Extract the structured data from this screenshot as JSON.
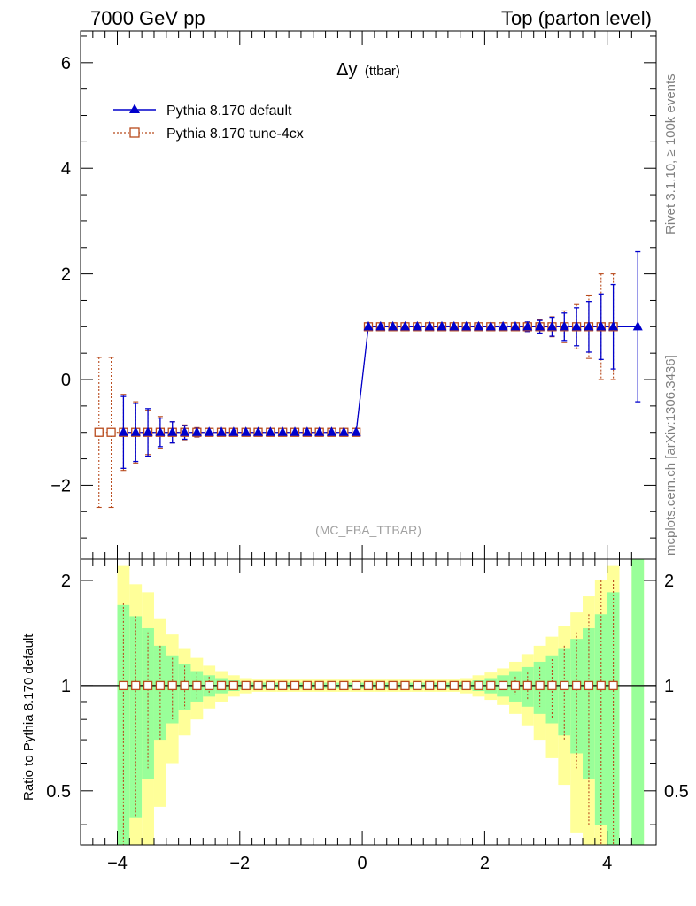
{
  "header": {
    "left": "7000 GeV pp",
    "right": "Top (parton level)"
  },
  "side_labels": {
    "rivet": "Rivet 3.1.10, ≥ 100k events",
    "mcplots": "mcplots.cern.ch [arXiv:1306.3436]"
  },
  "chart_data": [
    {
      "panel": "main",
      "type": "line",
      "title": "Δy (ttbar)",
      "title_main": "Δy",
      "title_sub": "(ttbar)",
      "watermark": "(MC_FBA_TTBAR)",
      "xlabel": "",
      "ylabel": "",
      "xlim": [
        -4.6,
        4.8
      ],
      "ylim": [
        -3.4,
        6.6
      ],
      "y_ticks": [
        -2,
        0,
        2,
        4,
        6
      ],
      "y_tick_labels": [
        "−2",
        "0",
        "2",
        "4",
        "6"
      ],
      "legend_position": "top-left",
      "series": [
        {
          "name": "Pythia 8.170 default",
          "color": "#0000cc",
          "marker": "triangle",
          "x": [
            -3.9,
            -3.7,
            -3.5,
            -3.3,
            -3.1,
            -2.9,
            -2.7,
            -2.5,
            -2.3,
            -2.1,
            -1.9,
            -1.7,
            -1.5,
            -1.3,
            -1.1,
            -0.9,
            -0.7,
            -0.5,
            -0.3,
            -0.1,
            0.1,
            0.3,
            0.5,
            0.7,
            0.9,
            1.1,
            1.3,
            1.5,
            1.7,
            1.9,
            2.1,
            2.3,
            2.5,
            2.7,
            2.9,
            3.1,
            3.3,
            3.5,
            3.7,
            3.9,
            4.1,
            4.5
          ],
          "y": [
            -1,
            -1,
            -1,
            -1,
            -1,
            -1,
            -1,
            -1,
            -1,
            -1,
            -1,
            -1,
            -1,
            -1,
            -1,
            -1,
            -1,
            -1,
            -1,
            -1,
            1,
            1,
            1,
            1,
            1,
            1,
            1,
            1,
            1,
            1,
            1,
            1,
            1,
            1,
            1,
            1,
            1,
            1,
            1,
            1,
            1,
            1
          ],
          "err": [
            0.68,
            0.55,
            0.45,
            0.27,
            0.2,
            0.13,
            0.08,
            0.05,
            0.04,
            0.03,
            0.02,
            0.02,
            0.02,
            0.02,
            0.02,
            0.02,
            0.02,
            0.02,
            0.02,
            0.02,
            0.02,
            0.02,
            0.02,
            0.02,
            0.02,
            0.02,
            0.02,
            0.02,
            0.02,
            0.03,
            0.03,
            0.04,
            0.06,
            0.09,
            0.12,
            0.18,
            0.26,
            0.36,
            0.48,
            0.62,
            0.8,
            1.42
          ]
        },
        {
          "name": "Pythia 8.170 tune-4cx",
          "color": "#b84a1c",
          "marker": "open-square",
          "x": [
            -4.3,
            -4.1,
            -3.9,
            -3.7,
            -3.5,
            -3.3,
            -3.1,
            -2.9,
            -2.7,
            -2.5,
            -2.3,
            -2.1,
            -1.9,
            -1.7,
            -1.5,
            -1.3,
            -1.1,
            -0.9,
            -0.7,
            -0.5,
            -0.3,
            -0.1,
            0.1,
            0.3,
            0.5,
            0.7,
            0.9,
            1.1,
            1.3,
            1.5,
            1.7,
            1.9,
            2.1,
            2.3,
            2.5,
            2.7,
            2.9,
            3.1,
            3.3,
            3.5,
            3.7,
            3.9,
            4.1
          ],
          "y": [
            -1,
            -1,
            -1,
            -1,
            -1,
            -1,
            -1,
            -1,
            -1,
            -1,
            -1,
            -1,
            -1,
            -1,
            -1,
            -1,
            -1,
            -1,
            -1,
            -1,
            -1,
            -1,
            1,
            1,
            1,
            1,
            1,
            1,
            1,
            1,
            1,
            1,
            1,
            1,
            1,
            1,
            1,
            1,
            1,
            1,
            1,
            1,
            1
          ],
          "err": [
            1.42,
            1.42,
            0.72,
            0.58,
            0.42,
            0.3,
            0.2,
            0.14,
            0.09,
            0.06,
            0.04,
            0.03,
            0.02,
            0.02,
            0.02,
            0.02,
            0.02,
            0.02,
            0.02,
            0.02,
            0.02,
            0.02,
            0.02,
            0.02,
            0.02,
            0.02,
            0.02,
            0.02,
            0.02,
            0.02,
            0.02,
            0.03,
            0.03,
            0.04,
            0.06,
            0.09,
            0.13,
            0.19,
            0.3,
            0.42,
            0.6,
            1.0,
            1.0
          ]
        }
      ]
    },
    {
      "panel": "ratio",
      "type": "line",
      "ylabel": "Ratio to Pythia 8.170 default",
      "xlim": [
        -4.6,
        4.8
      ],
      "ylim": [
        0.35,
        2.3
      ],
      "x_ticks": [
        -4,
        -2,
        0,
        2,
        4
      ],
      "x_tick_labels": [
        "−4",
        "−2",
        "0",
        "2",
        "4"
      ],
      "y_ticks": [
        0.5,
        1,
        2
      ],
      "y_tick_labels": [
        "0.5",
        "1",
        "2"
      ],
      "bands": {
        "bin_width": 0.2,
        "x_centers": [
          -3.9,
          -3.7,
          -3.5,
          -3.3,
          -3.1,
          -2.9,
          -2.7,
          -2.5,
          -2.3,
          -2.1,
          -1.9,
          -1.7,
          -1.5,
          -1.3,
          -1.1,
          -0.9,
          -0.7,
          -0.5,
          -0.3,
          -0.1,
          0.1,
          0.3,
          0.5,
          0.7,
          0.9,
          1.1,
          1.3,
          1.5,
          1.7,
          1.9,
          2.1,
          2.3,
          2.5,
          2.7,
          2.9,
          3.1,
          3.3,
          3.5,
          3.7,
          3.9,
          4.1,
          4.5
        ],
        "yellow_rel": [
          1.2,
          0.95,
          0.85,
          0.55,
          0.4,
          0.28,
          0.2,
          0.14,
          0.1,
          0.07,
          0.05,
          0.04,
          0.04,
          0.04,
          0.04,
          0.04,
          0.04,
          0.04,
          0.04,
          0.04,
          0.04,
          0.04,
          0.04,
          0.04,
          0.04,
          0.04,
          0.04,
          0.04,
          0.05,
          0.07,
          0.09,
          0.12,
          0.17,
          0.23,
          0.3,
          0.38,
          0.48,
          0.62,
          0.8,
          1.0,
          1.2,
          1.6
        ],
        "green_rel": [
          0.7,
          0.58,
          0.46,
          0.3,
          0.22,
          0.15,
          0.1,
          0.07,
          0.05,
          0.035,
          0.025,
          0.02,
          0.02,
          0.02,
          0.02,
          0.02,
          0.02,
          0.02,
          0.02,
          0.02,
          0.02,
          0.02,
          0.02,
          0.02,
          0.02,
          0.02,
          0.02,
          0.02,
          0.025,
          0.035,
          0.05,
          0.07,
          0.1,
          0.13,
          0.17,
          0.22,
          0.28,
          0.36,
          0.46,
          0.6,
          0.85,
          1.42
        ]
      },
      "series": [
        {
          "name": "Pythia 8.170 tune-4cx",
          "color": "#b84a1c",
          "marker": "open-square",
          "x": [
            -3.9,
            -3.7,
            -3.5,
            -3.3,
            -3.1,
            -2.9,
            -2.7,
            -2.5,
            -2.3,
            -2.1,
            -1.9,
            -1.7,
            -1.5,
            -1.3,
            -1.1,
            -0.9,
            -0.7,
            -0.5,
            -0.3,
            -0.1,
            0.1,
            0.3,
            0.5,
            0.7,
            0.9,
            1.1,
            1.3,
            1.5,
            1.7,
            1.9,
            2.1,
            2.3,
            2.5,
            2.7,
            2.9,
            3.1,
            3.3,
            3.5,
            3.7,
            3.9,
            4.1
          ],
          "y": [
            1,
            1,
            1,
            1,
            1,
            1,
            1,
            1,
            1,
            1,
            1,
            1,
            1,
            1,
            1,
            1,
            1,
            1,
            1,
            1,
            1,
            1,
            1,
            1,
            1,
            1,
            1,
            1,
            1,
            1,
            1,
            1,
            1,
            1,
            1,
            1,
            1,
            1,
            1,
            1,
            1
          ],
          "err": [
            0.72,
            0.58,
            0.42,
            0.3,
            0.2,
            0.14,
            0.09,
            0.06,
            0.04,
            0.03,
            0.02,
            0.02,
            0.02,
            0.02,
            0.02,
            0.02,
            0.02,
            0.02,
            0.02,
            0.02,
            0.02,
            0.02,
            0.02,
            0.02,
            0.02,
            0.02,
            0.02,
            0.02,
            0.02,
            0.03,
            0.03,
            0.04,
            0.06,
            0.09,
            0.13,
            0.19,
            0.3,
            0.42,
            0.6,
            1.0,
            1.0
          ]
        }
      ]
    }
  ]
}
